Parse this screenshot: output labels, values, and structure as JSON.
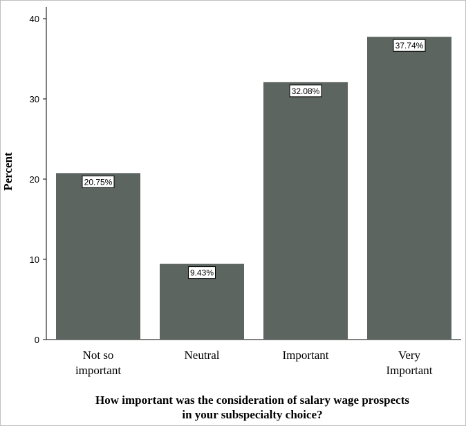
{
  "chart_data": {
    "type": "bar",
    "categories": [
      [
        "Not so",
        "important"
      ],
      [
        "Neutral"
      ],
      [
        "Important"
      ],
      [
        "Very",
        "Important"
      ]
    ],
    "values": [
      20.75,
      9.43,
      32.08,
      37.74
    ],
    "data_labels": [
      "20.75%",
      "9.43%",
      "32.08%",
      "37.74%"
    ],
    "ylabel": "Percent",
    "xlabel": [
      "How important was the consideration of salary wage prospects",
      "in your subspecialty choice?"
    ],
    "ylim": [
      0,
      40
    ],
    "yticks": [
      0,
      10,
      20,
      30,
      40
    ],
    "grid": false,
    "colors": {
      "bar": "#5c6560",
      "axis": "#000000",
      "label_bg": "#ffffff"
    }
  }
}
